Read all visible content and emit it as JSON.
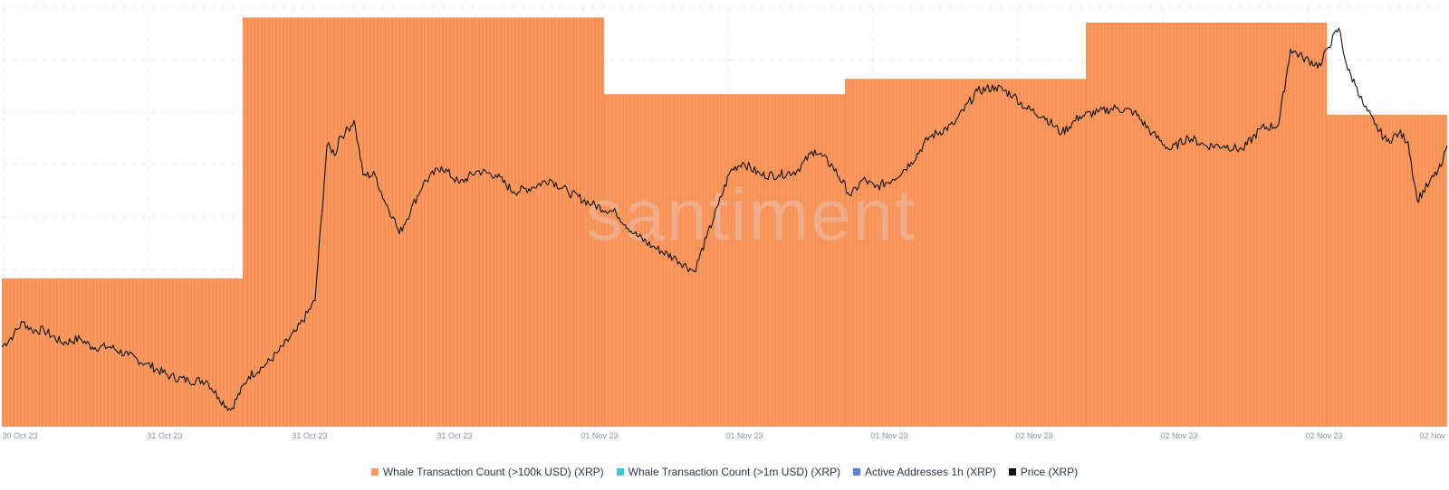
{
  "chart_data": {
    "type": "bar",
    "title": "",
    "watermark": "santiment",
    "x_tick_labels": [
      "30 Oct 23",
      "31 Oct 23",
      "31 Oct 23",
      "31 Oct 23",
      "01 Nov 23",
      "01 Nov 23",
      "01 Nov 23",
      "02 Nov 23",
      "02 Nov 23",
      "02 Nov 23",
      "02 Nov"
    ],
    "grid": true,
    "colors": {
      "whale_100k": "#f79a64",
      "whale_100k_stripe": "#f2782f",
      "whale_1m": "#4bc0d9",
      "active_addresses": "#5b7ee5",
      "price": "#111111"
    },
    "series": [
      {
        "name": "Whale Transaction Count (>100k USD) (XRP)",
        "kind": "bar",
        "period_boundaries": [
          0,
          4,
          10,
          14,
          18,
          22,
          24
        ],
        "values": [
          29,
          80,
          65,
          68,
          79,
          61
        ],
        "ylim": [
          0,
          82
        ]
      },
      {
        "name": "Whale Transaction Count (>1m USD) (XRP)",
        "kind": "bar",
        "values": []
      },
      {
        "name": "Active Addresses 1h (XRP)",
        "kind": "line",
        "values": []
      },
      {
        "name": "Price (XRP)",
        "kind": "line",
        "ylim": [
          0.53,
          0.63
        ],
        "x": [
          0,
          0.2,
          0.35,
          0.5,
          0.7,
          1.0,
          1.3,
          1.5,
          1.8,
          2.1,
          2.4,
          2.8,
          3.1,
          3.4,
          3.6,
          3.8,
          4.1,
          4.4,
          4.6,
          4.9,
          5.2,
          5.4,
          5.55,
          5.6,
          5.7,
          5.85,
          6.0,
          6.2,
          6.35,
          6.5,
          6.6,
          6.8,
          7.0,
          7.3,
          7.6,
          7.9,
          8.2,
          8.5,
          8.8,
          9.1,
          9.4,
          9.8,
          10.2,
          10.5,
          10.8,
          11.2,
          11.5,
          11.7,
          11.9,
          12.1,
          12.3,
          12.6,
          12.9,
          13.2,
          13.5,
          13.8,
          14.1,
          14.3,
          14.5,
          14.8,
          15.1,
          15.4,
          15.8,
          16.2,
          16.5,
          16.8,
          17.0,
          17.3,
          17.6,
          17.9,
          18.2,
          18.5,
          18.8,
          19.1,
          19.4,
          19.7,
          20.0,
          20.3,
          20.6,
          20.9,
          21.2,
          21.4,
          21.6,
          21.9,
          22.0,
          22.2,
          22.35,
          22.5,
          22.6,
          22.8,
          23.0,
          23.2,
          23.35,
          23.5,
          23.7,
          23.9,
          24.0
        ],
        "values": [
          0.549,
          0.552,
          0.555,
          0.553,
          0.553,
          0.55,
          0.551,
          0.549,
          0.549,
          0.547,
          0.545,
          0.542,
          0.541,
          0.541,
          0.537,
          0.534,
          0.542,
          0.545,
          0.548,
          0.553,
          0.56,
          0.597,
          0.595,
          0.599,
          0.6,
          0.603,
          0.59,
          0.59,
          0.584,
          0.58,
          0.576,
          0.582,
          0.588,
          0.592,
          0.588,
          0.591,
          0.59,
          0.586,
          0.587,
          0.589,
          0.586,
          0.583,
          0.581,
          0.576,
          0.573,
          0.57,
          0.567,
          0.575,
          0.583,
          0.591,
          0.593,
          0.59,
          0.59,
          0.591,
          0.596,
          0.592,
          0.585,
          0.589,
          0.587,
          0.589,
          0.593,
          0.599,
          0.602,
          0.61,
          0.611,
          0.609,
          0.606,
          0.604,
          0.6,
          0.604,
          0.605,
          0.606,
          0.605,
          0.6,
          0.596,
          0.599,
          0.597,
          0.597,
          0.596,
          0.601,
          0.602,
          0.62,
          0.618,
          0.616,
          0.62,
          0.625,
          0.615,
          0.611,
          0.607,
          0.602,
          0.598,
          0.6,
          0.598,
          0.584,
          0.588,
          0.592,
          0.597
        ]
      }
    ]
  }
}
